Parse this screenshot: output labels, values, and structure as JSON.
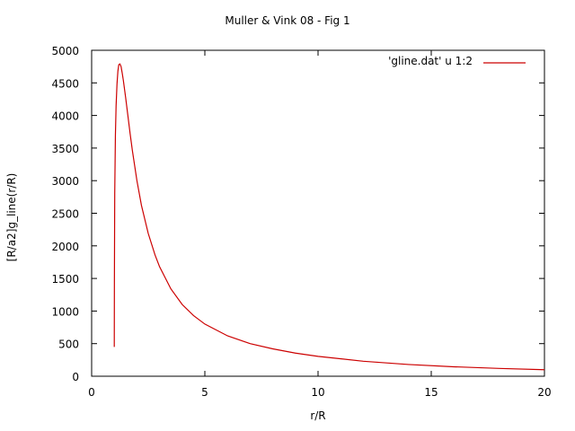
{
  "chart_data": {
    "type": "line",
    "title": "Muller & Vink 08 - Fig 1",
    "xlabel": "r/R",
    "ylabel": "[R/a2]g_line(r/R)",
    "xlim": [
      0,
      20
    ],
    "ylim": [
      0,
      5000
    ],
    "xticks": [
      0,
      5,
      10,
      15,
      20
    ],
    "yticks": [
      0,
      500,
      1000,
      1500,
      2000,
      2500,
      3000,
      3500,
      4000,
      4500,
      5000
    ],
    "grid": false,
    "legend": "top-right",
    "series": [
      {
        "name": "'gline.dat' u 1:2",
        "color": "#cc0000",
        "x": [
          1.0,
          1.005,
          1.02,
          1.05,
          1.08,
          1.12,
          1.16,
          1.2,
          1.25,
          1.3,
          1.35,
          1.4,
          1.5,
          1.6,
          1.7,
          1.8,
          2.0,
          2.2,
          2.5,
          2.8,
          3.0,
          3.5,
          4.0,
          4.5,
          5.0,
          6.0,
          7.0,
          8.0,
          9.0,
          10.0,
          12.0,
          14.0,
          16.0,
          18.0,
          20.0
        ],
        "y": [
          450,
          1400,
          2800,
          3700,
          4150,
          4480,
          4680,
          4780,
          4790,
          4750,
          4650,
          4540,
          4280,
          4000,
          3720,
          3460,
          3000,
          2620,
          2190,
          1860,
          1680,
          1340,
          1100,
          930,
          800,
          620,
          500,
          420,
          355,
          305,
          230,
          180,
          145,
          120,
          100
        ]
      }
    ]
  }
}
